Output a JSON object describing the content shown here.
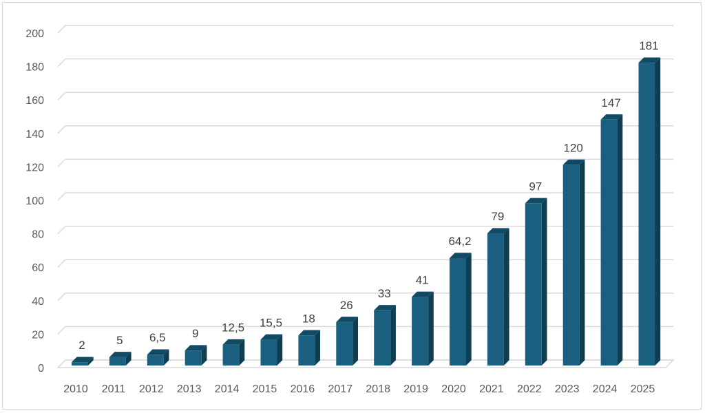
{
  "chart_data": {
    "type": "bar",
    "categories": [
      "2010",
      "2011",
      "2012",
      "2013",
      "2014",
      "2015",
      "2016",
      "2017",
      "2018",
      "2019",
      "2020",
      "2021",
      "2022",
      "2023",
      "2024",
      "2025"
    ],
    "values": [
      2,
      5,
      6.5,
      9,
      12.5,
      15.5,
      18,
      26,
      33,
      41,
      64.2,
      79,
      97,
      120,
      147,
      181
    ],
    "data_labels": [
      "2",
      "5",
      "6,5",
      "9",
      "12,5",
      "15,5",
      "18",
      "26",
      "33",
      "41",
      "64,2",
      "79",
      "97",
      "120",
      "147",
      "181"
    ],
    "y_ticks": [
      "0",
      "20",
      "40",
      "60",
      "80",
      "100",
      "120",
      "140",
      "160",
      "180",
      "200"
    ],
    "ylim": [
      0,
      200
    ],
    "grid": true,
    "legend": "none",
    "colors": {
      "bar_front": "#1a5f80",
      "bar_side": "#0f3d52",
      "bar_top": "#134a63",
      "grid": "#d9d9d9",
      "floor": "#d9d9d9"
    }
  }
}
